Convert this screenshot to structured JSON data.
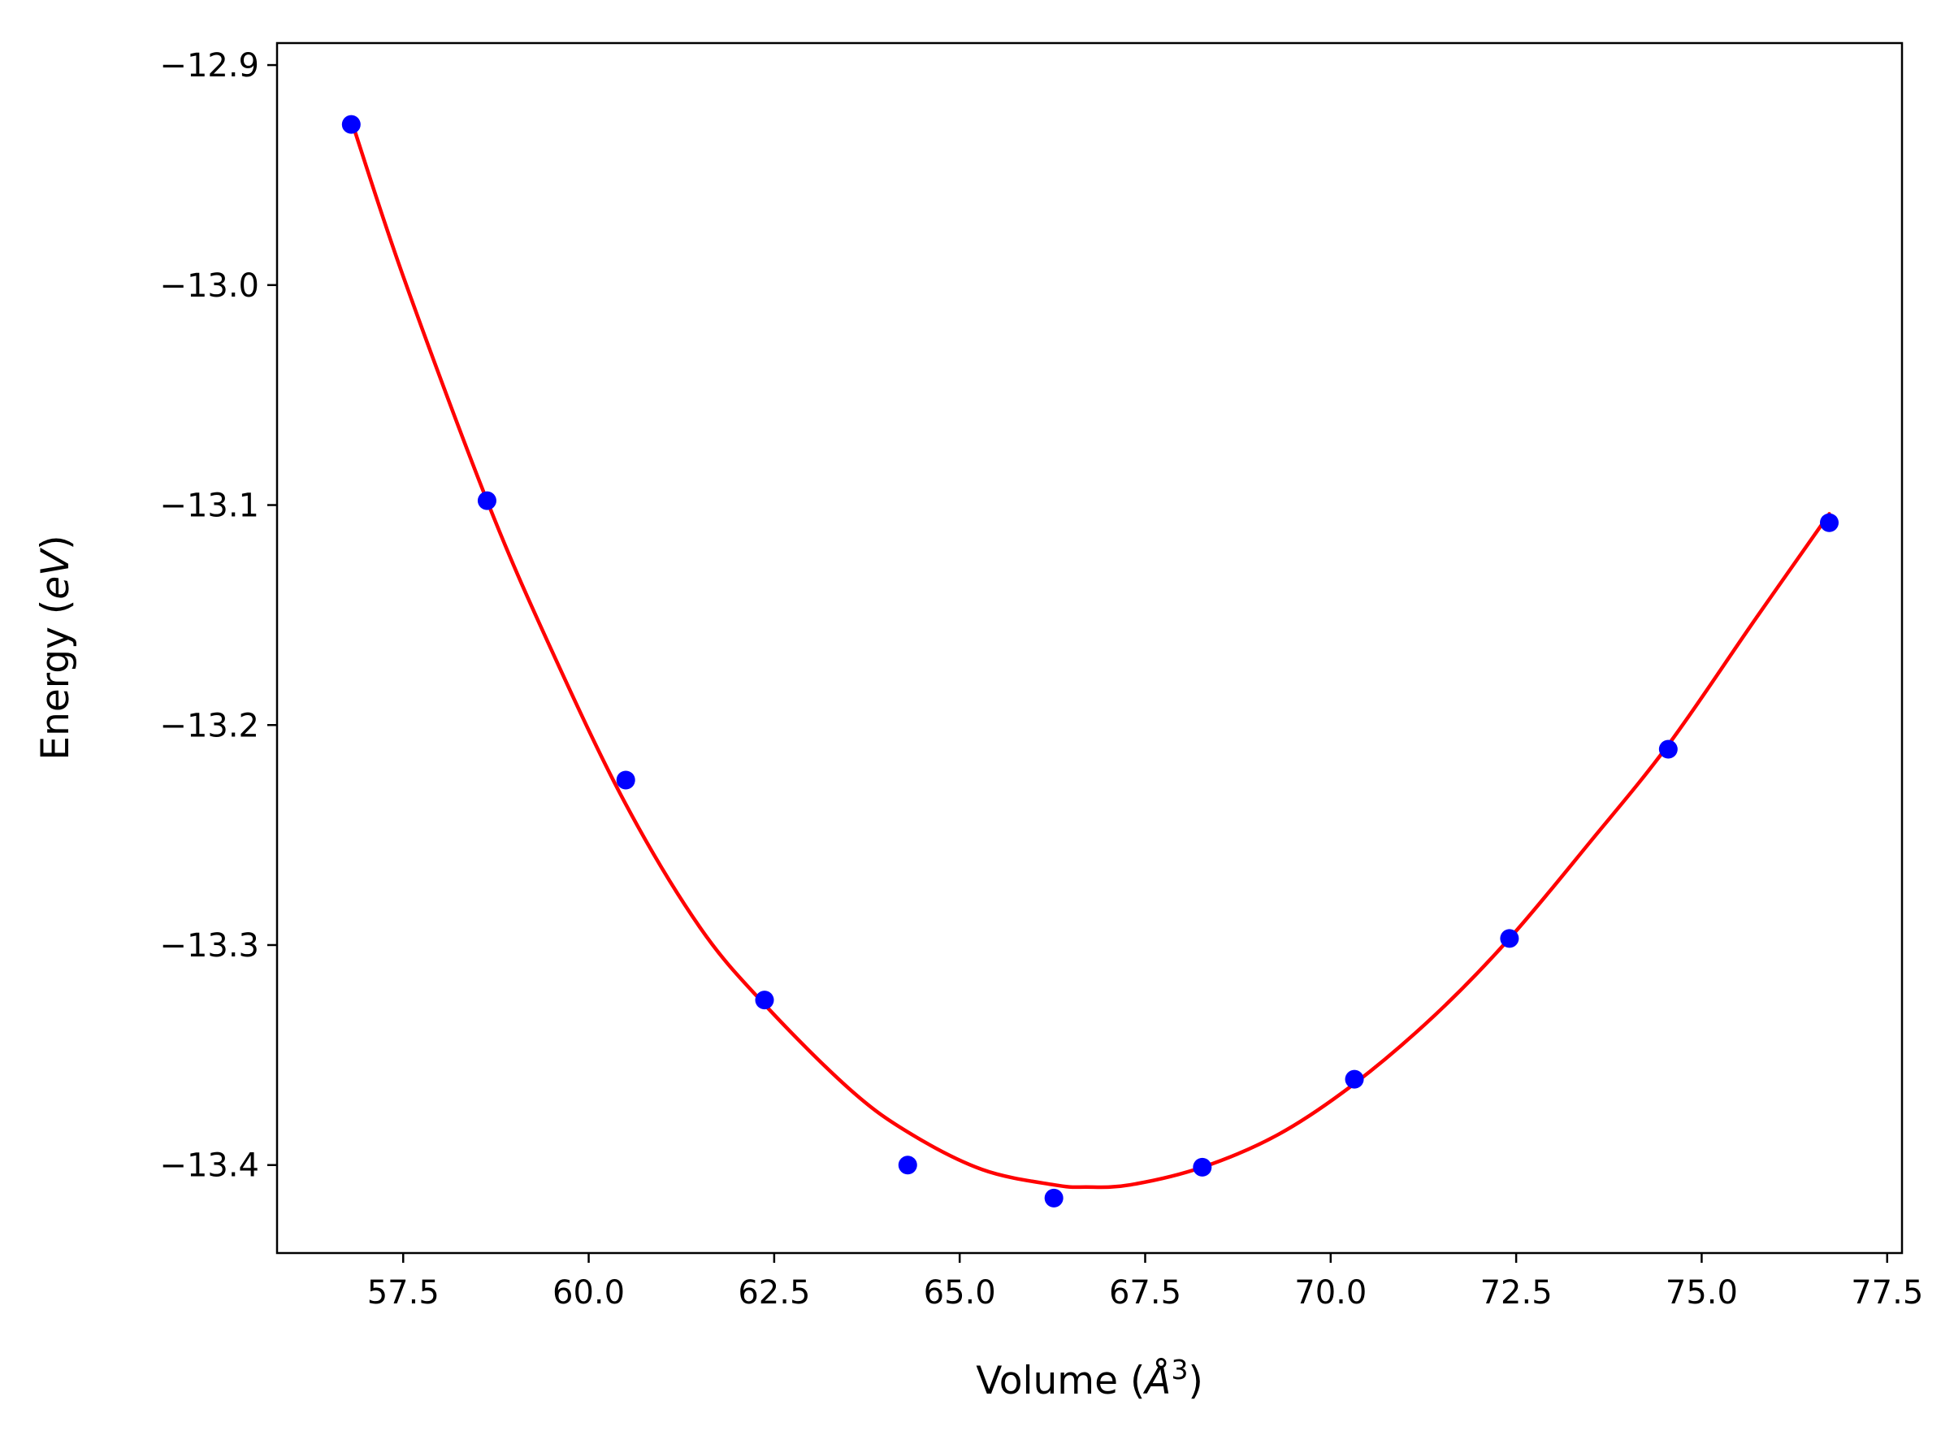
{
  "chart_data": {
    "type": "scatter",
    "xlabel": "Volume (Å³)",
    "xlabel_parts": {
      "pre": "Volume (",
      "unit": "Å",
      "sup": "3",
      "post": ")"
    },
    "ylabel": "Energy (eV)",
    "ylabel_parts": {
      "pre": "Energy (",
      "unit": "eV",
      "post": ")"
    },
    "xlim": [
      55.8,
      77.7
    ],
    "ylim": [
      -13.44,
      -12.89
    ],
    "xticks": [
      57.5,
      60.0,
      62.5,
      65.0,
      67.5,
      70.0,
      72.5,
      75.0,
      77.5
    ],
    "xtick_labels": [
      "57.5",
      "60.0",
      "62.5",
      "65.0",
      "67.5",
      "70.0",
      "72.5",
      "75.0",
      "77.5"
    ],
    "yticks": [
      -12.9,
      -13.0,
      -13.1,
      -13.2,
      -13.3,
      -13.4
    ],
    "ytick_labels": [
      "−12.9",
      "−13.0",
      "−13.1",
      "−13.2",
      "−13.3",
      "−13.4"
    ],
    "grid": false,
    "series": [
      {
        "kind": "points",
        "color": "#0000ff",
        "x": [
          56.8,
          58.63,
          60.5,
          62.37,
          64.3,
          66.27,
          68.27,
          70.32,
          72.41,
          74.55,
          76.72
        ],
        "y": [
          -12.927,
          -13.098,
          -13.225,
          -13.325,
          -13.4,
          -13.415,
          -13.401,
          -13.361,
          -13.297,
          -13.211,
          -13.108
        ]
      },
      {
        "kind": "fit-line",
        "color": "#ff0000",
        "x": [
          56.8,
          57.5,
          58.63,
          59.5,
          60.5,
          61.5,
          62.37,
          63.5,
          64.3,
          65.3,
          66.27,
          66.7,
          67.3,
          68.27,
          69.3,
          70.32,
          71.4,
          72.41,
          73.5,
          74.55,
          75.7,
          76.72
        ],
        "y": [
          -12.925,
          -12.996,
          -13.098,
          -13.166,
          -13.236,
          -13.292,
          -13.327,
          -13.365,
          -13.385,
          -13.402,
          -13.409,
          -13.41,
          -13.409,
          -13.401,
          -13.386,
          -13.363,
          -13.332,
          -13.297,
          -13.253,
          -13.209,
          -13.153,
          -13.104
        ]
      }
    ]
  }
}
